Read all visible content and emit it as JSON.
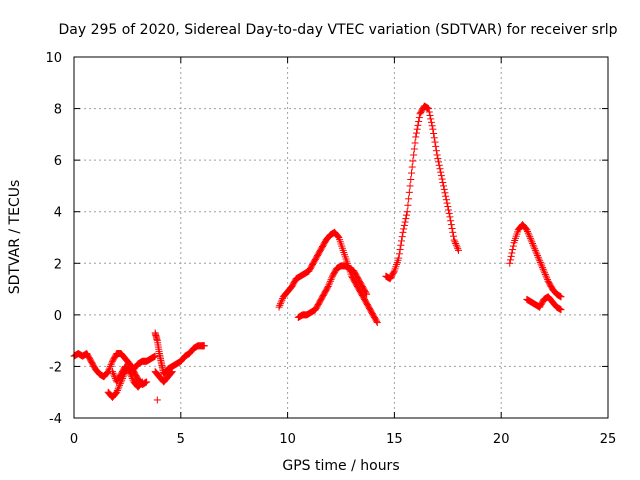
{
  "chart_data": {
    "type": "scatter",
    "title": "Day 295 of 2020, Sidereal Day-to-day VTEC variation (SDTVAR) for receiver srlp",
    "xlabel": "GPS time / hours",
    "ylabel": "SDTVAR / TECUs",
    "xlim": [
      0,
      25
    ],
    "ylim": [
      -4,
      10
    ],
    "xticks": [
      0,
      5,
      10,
      15,
      20,
      25
    ],
    "yticks": [
      -4,
      -2,
      0,
      2,
      4,
      6,
      8,
      10
    ],
    "grid": true,
    "marker": "+",
    "color": "#ff0000",
    "series": [
      {
        "name": "srlp",
        "segments": [
          {
            "x": [
              0.0,
              0.2,
              0.4,
              0.6,
              0.8,
              1.0,
              1.2,
              1.4,
              1.6,
              1.8,
              2.0,
              2.2,
              2.4,
              2.6,
              2.8,
              3.0,
              3.2,
              3.4,
              3.6,
              3.8
            ],
            "y": [
              -1.6,
              -1.5,
              -1.6,
              -1.5,
              -1.8,
              -2.1,
              -2.3,
              -2.4,
              -2.2,
              -1.8,
              -1.5,
              -1.5,
              -1.7,
              -1.9,
              -2.1,
              -1.9,
              -1.8,
              -1.8,
              -1.7,
              -1.6
            ]
          },
          {
            "x": [
              1.6,
              1.8,
              2.0,
              2.2,
              2.4,
              2.6,
              2.8,
              3.0,
              3.2,
              3.4
            ],
            "y": [
              -3.0,
              -3.2,
              -3.0,
              -2.6,
              -2.2,
              -2.0,
              -2.2,
              -2.5,
              -2.7,
              -2.6
            ]
          },
          {
            "x": [
              1.8,
              2.0,
              2.2,
              2.4,
              2.6,
              2.8,
              3.0,
              3.2
            ],
            "y": [
              -2.2,
              -2.6,
              -2.3,
              -2.0,
              -2.2,
              -2.6,
              -2.8,
              -2.6
            ]
          },
          {
            "x": [
              3.8,
              3.9,
              4.0,
              4.1,
              4.2,
              4.4,
              4.6,
              4.8,
              5.0,
              5.2,
              5.4,
              5.6,
              5.8,
              6.0,
              6.1
            ],
            "y": [
              -0.7,
              -1.0,
              -1.5,
              -1.9,
              -2.3,
              -2.1,
              -2.0,
              -1.9,
              -1.8,
              -1.6,
              -1.5,
              -1.3,
              -1.2,
              -1.2,
              -1.2
            ]
          },
          {
            "x": [
              3.8,
              4.0,
              4.2,
              4.4,
              4.6
            ],
            "y": [
              -2.2,
              -2.4,
              -2.6,
              -2.4,
              -2.2
            ]
          },
          {
            "x": [
              3.9
            ],
            "y": [
              -3.3
            ]
          },
          {
            "x": [
              9.6,
              9.8,
              10.0,
              10.2,
              10.4,
              10.6,
              10.8,
              11.0,
              11.2,
              11.4,
              11.6,
              11.8,
              12.0,
              12.2,
              12.4,
              12.6,
              12.8,
              13.0,
              13.2,
              13.4,
              13.6,
              13.8,
              14.0,
              14.2
            ],
            "y": [
              0.3,
              0.7,
              0.9,
              1.1,
              1.4,
              1.5,
              1.6,
              1.7,
              2.0,
              2.3,
              2.6,
              2.9,
              3.1,
              3.2,
              3.0,
              2.5,
              2.0,
              1.5,
              1.2,
              0.9,
              0.6,
              0.3,
              0.0,
              -0.3
            ]
          },
          {
            "x": [
              10.5,
              10.7,
              10.9,
              11.1,
              11.3,
              11.5,
              11.7,
              11.9,
              12.1,
              12.3,
              12.5,
              12.7,
              12.9,
              13.1,
              13.3,
              13.5,
              13.7
            ],
            "y": [
              -0.1,
              0.0,
              0.0,
              0.1,
              0.2,
              0.5,
              0.8,
              1.1,
              1.5,
              1.8,
              1.9,
              1.9,
              1.8,
              1.7,
              1.4,
              1.1,
              0.8
            ]
          },
          {
            "x": [
              14.6,
              14.8,
              15.0,
              15.2,
              15.4,
              15.6,
              15.8,
              16.0,
              16.2,
              16.4,
              16.6,
              16.8,
              17.0,
              17.2,
              17.4,
              17.6,
              17.8,
              18.0
            ],
            "y": [
              1.5,
              1.4,
              1.7,
              2.2,
              3.2,
              4.0,
              5.5,
              6.9,
              7.8,
              8.1,
              8.0,
              7.2,
              6.2,
              5.4,
              4.6,
              3.8,
              2.9,
              2.5
            ]
          },
          {
            "x": [
              20.4,
              20.6,
              20.8,
              21.0,
              21.2,
              21.4,
              21.6,
              21.8,
              22.0,
              22.2,
              22.4,
              22.6,
              22.8
            ],
            "y": [
              2.0,
              2.8,
              3.3,
              3.5,
              3.3,
              2.9,
              2.5,
              2.1,
              1.7,
              1.3,
              1.0,
              0.8,
              0.7
            ]
          },
          {
            "x": [
              21.2,
              21.4,
              21.6,
              21.8,
              22.0,
              22.2,
              22.4,
              22.6,
              22.8
            ],
            "y": [
              0.6,
              0.5,
              0.4,
              0.3,
              0.6,
              0.7,
              0.5,
              0.3,
              0.2
            ]
          }
        ]
      }
    ]
  }
}
